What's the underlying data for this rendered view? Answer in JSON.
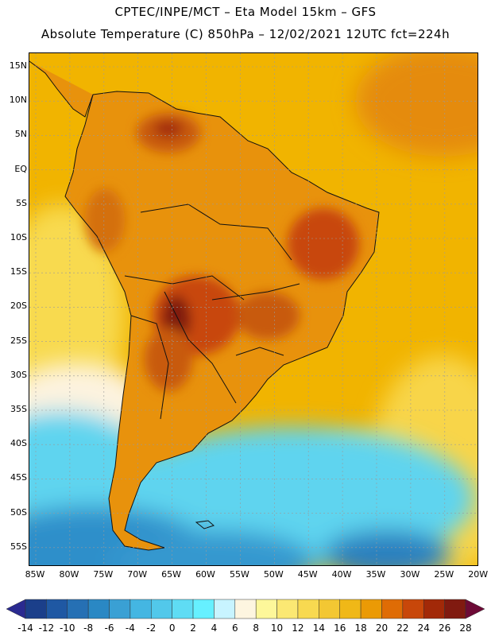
{
  "header": {
    "title_line1": "CPTEC/INPE/MCT –  Eta Model 15km – GFS",
    "title_line2": "Absolute Temperature (C) 850hPa – 12/02/2021 12UTC fct=224h"
  },
  "map": {
    "variable": "Absolute Temperature",
    "units": "C",
    "level": "850hPa",
    "model": "Eta Model 15km – GFS",
    "lat_labels": [
      "15N",
      "10N",
      "5N",
      "EQ",
      "5S",
      "10S",
      "15S",
      "20S",
      "25S",
      "30S",
      "35S",
      "40S",
      "45S",
      "50S",
      "55S"
    ],
    "lon_labels": [
      "85W",
      "80W",
      "75W",
      "70W",
      "65W",
      "60W",
      "55W",
      "50W",
      "45W",
      "40W",
      "35W",
      "30W",
      "25W",
      "20W"
    ],
    "colors": {
      "ocean_warm": "#f2b400",
      "land_warm": "#e39a12",
      "hot": "#c85a0c",
      "hottest": "#8a1f12",
      "cool_ocean": "#55d4ef",
      "cold_ocean": "#2a8ac4",
      "outline": "#111111",
      "grid": "#9a9a9a"
    }
  },
  "colorbar": {
    "labels": [
      "-14",
      "-12",
      "-10",
      "-8",
      "-6",
      "-4",
      "-2",
      "0",
      "2",
      "4",
      "6",
      "8",
      "10",
      "12",
      "14",
      "16",
      "18",
      "20",
      "22",
      "24",
      "26",
      "28"
    ],
    "colors": [
      "#1b3f8a",
      "#1f58a3",
      "#2670b4",
      "#2a88c4",
      "#3aa0d4",
      "#44b6e2",
      "#52c8ea",
      "#5fdcf4",
      "#66f0ff",
      "#c8f4ff",
      "#fdf5e0",
      "#fdf79a",
      "#fbe873",
      "#f8d950",
      "#f3c733",
      "#f0b817",
      "#eb9a05",
      "#df6c05",
      "#c8470a",
      "#a22908",
      "#801a10"
    ],
    "under_color": "#2a2a90",
    "over_color": "#6d0a36"
  }
}
